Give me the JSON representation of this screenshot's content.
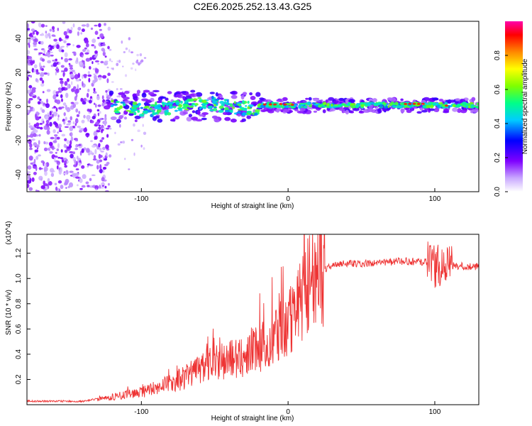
{
  "title": "C2E6.2025.252.13.43.G25",
  "chart_data": [
    {
      "type": "heatmap",
      "name": "spectrogram",
      "xlabel": "Height of straight line (km)",
      "ylabel": "Frequency (Hz)",
      "xlim": [
        -178,
        130
      ],
      "ylim": [
        -50,
        50
      ],
      "xticks": [
        -100,
        0,
        100
      ],
      "yticks": [
        -40,
        -20,
        0,
        20,
        40
      ],
      "colorbar": {
        "label": "Normalized spectral amplitude",
        "range": [
          0.0,
          1.0
        ],
        "ticks": [
          0.0,
          0.2,
          0.4,
          0.6,
          0.8
        ],
        "colormap": [
          "#ffffff",
          "#c9a8ff",
          "#7f00ff",
          "#0000ff",
          "#00ccff",
          "#00ff88",
          "#7fff00",
          "#ffff00",
          "#ff8800",
          "#ff0000",
          "#ff00aa"
        ]
      },
      "regions": [
        {
          "x_range": [
            -178,
            -122
          ],
          "freq_band": [
            -50,
            50
          ],
          "amplitude": 0.2,
          "description": "noise"
        },
        {
          "x_range": [
            -122,
            -90
          ],
          "freq_band": [
            -8,
            10
          ],
          "amplitude": 0.45
        },
        {
          "x_range": [
            -90,
            -20
          ],
          "freq_band": [
            -7,
            8
          ],
          "amplitude": 0.5
        },
        {
          "x_range": [
            -20,
            130
          ],
          "freq_band": [
            -2,
            3
          ],
          "amplitude": 0.6
        },
        {
          "x_range": [
            -17,
            -3
          ],
          "freq_band": [
            0.5,
            2
          ],
          "amplitude": 0.9
        },
        {
          "x_range": [
            78,
            95
          ],
          "freq_band": [
            1,
            3
          ],
          "amplitude": 0.95
        }
      ]
    },
    {
      "type": "line",
      "name": "snr",
      "xlabel": "Height of straight line (km)",
      "ylabel": "SNR (10 * v/v)",
      "y_multiplier": "(x10^4)",
      "xlim": [
        -178,
        130
      ],
      "ylim": [
        0,
        1.35
      ],
      "xticks": [
        -100,
        0,
        100
      ],
      "yticks": [
        0.2,
        0.4,
        0.6,
        0.8,
        1.0,
        1.2
      ],
      "color": "#ee3333",
      "series": [
        {
          "name": "SNR",
          "x": [
            -178,
            -160,
            -140,
            -130,
            -120,
            -110,
            -100,
            -90,
            -80,
            -70,
            -60,
            -50,
            -40,
            -30,
            -20,
            -15,
            -10,
            -5,
            0,
            5,
            10,
            15,
            20,
            25,
            30,
            35,
            40,
            50,
            60,
            70,
            80,
            90,
            95,
            100,
            105,
            110,
            115,
            120,
            130
          ],
          "y": [
            0.02,
            0.02,
            0.02,
            0.04,
            0.06,
            0.08,
            0.1,
            0.13,
            0.17,
            0.22,
            0.28,
            0.33,
            0.36,
            0.4,
            0.45,
            0.48,
            0.52,
            0.58,
            0.65,
            0.75,
            0.85,
            0.95,
            1.02,
            1.07,
            1.1,
            1.11,
            1.12,
            1.12,
            1.12,
            1.13,
            1.14,
            1.13,
            1.13,
            1.1,
            1.1,
            1.1,
            1.1,
            1.1,
            1.09
          ]
        }
      ]
    }
  ]
}
